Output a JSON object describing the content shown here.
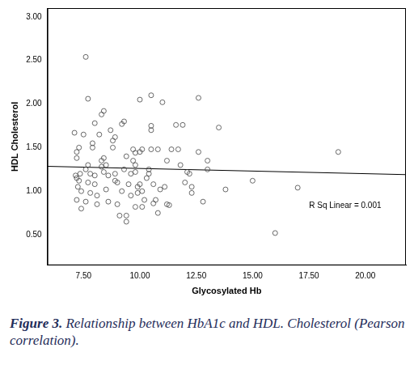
{
  "chart_data": {
    "type": "scatter",
    "x_label": "Glycosylated Hb",
    "y_label": "HDL Cholesterol",
    "annotation": "R Sq Linear = 0.001",
    "caption_label": "Figure 3.",
    "caption": "Relationship between HbA1c and HDL. Cholesterol (Pearson correlation).",
    "color": "#444444",
    "marker": "open_circle",
    "grid": false,
    "xlim": [
      5.9,
      21.8
    ],
    "ylim": [
      0.15,
      3.1
    ],
    "xticks": [
      {
        "value": 7.5,
        "label": "7.50"
      },
      {
        "value": 10,
        "label": "10.00"
      },
      {
        "value": 12.5,
        "label": "12.50"
      },
      {
        "value": 15,
        "label": "15.00"
      },
      {
        "value": 17.5,
        "label": "17.50"
      },
      {
        "value": 20,
        "label": "20.00"
      }
    ],
    "yticks": [
      {
        "value": 0.5,
        "label": "0.50"
      },
      {
        "value": 1,
        "label": "1.00"
      },
      {
        "value": 1.5,
        "label": "1.50"
      },
      {
        "value": 2,
        "label": "2.00"
      },
      {
        "value": 2.5,
        "label": "2.50"
      },
      {
        "value": 3,
        "label": "3.00"
      }
    ],
    "x": [
      7.1,
      7.2,
      7.3,
      7.2,
      7.15,
      7.2,
      7.3,
      7.25,
      7.2,
      7.35,
      7.4,
      7.4,
      7.5,
      7.6,
      7.7,
      7.6,
      7.7,
      7.7,
      7.8,
      7.8,
      7.6,
      7.9,
      7.9,
      8.0,
      8.0,
      8.0,
      8.1,
      8.1,
      8.2,
      8.3,
      8.4,
      8.3,
      8.3,
      8.4,
      8.4,
      8.5,
      8.6,
      8.5,
      8.6,
      8.7,
      8.8,
      8.8,
      8.9,
      8.9,
      8.9,
      9.0,
      9.0,
      9.1,
      9.2,
      9.3,
      9.3,
      9.2,
      9.4,
      9.4,
      9.4,
      9.5,
      9.6,
      9.6,
      9.7,
      9.7,
      9.8,
      9.8,
      9.8,
      9.8,
      9.9,
      9.9,
      10.0,
      10.0,
      10.0,
      10.1,
      10.1,
      10.1,
      10.2,
      10.3,
      10.4,
      10.4,
      10.5,
      10.5,
      10.5,
      10.5,
      10.6,
      10.6,
      10.7,
      10.8,
      10.8,
      10.9,
      11.0,
      11.1,
      11.2,
      11.2,
      11.3,
      11.4,
      11.6,
      11.7,
      11.8,
      11.9,
      12.0,
      12.1,
      12.2,
      12.3,
      12.3,
      12.6,
      12.6,
      12.8,
      13.0,
      13.0,
      13.5,
      13.8,
      15.0,
      16.0,
      17.0,
      18.8
    ],
    "values": [
      1.67,
      1.45,
      1.5,
      1.38,
      1.18,
      1.15,
      1.12,
      1.05,
      0.9,
      1.2,
      1.0,
      0.8,
      1.65,
      2.54,
      2.06,
      1.25,
      1.3,
      1.1,
      1.2,
      0.98,
      0.88,
      1.55,
      1.5,
      1.78,
      1.08,
      1.18,
      0.95,
      0.85,
      1.65,
      1.88,
      1.92,
      1.35,
      1.28,
      1.38,
      1.22,
      1.3,
      1.18,
      1.02,
      0.88,
      1.7,
      1.58,
      1.5,
      1.62,
      1.2,
      1.12,
      1.1,
      0.85,
      0.72,
      1.77,
      1.8,
      1.25,
      1.0,
      1.4,
      0.72,
      0.65,
      1.08,
      1.2,
      0.95,
      1.48,
      1.35,
      1.44,
      1.3,
      1.22,
      0.82,
      1.05,
      0.98,
      2.05,
      1.45,
      1.08,
      1.48,
      1.0,
      0.82,
      0.9,
      1.15,
      1.2,
      1.25,
      2.1,
      1.75,
      1.7,
      1.48,
      1.08,
      0.86,
      0.9,
      0.75,
      1.48,
      1.02,
      2.02,
      1.05,
      1.35,
      0.85,
      0.84,
      1.48,
      1.76,
      1.48,
      1.3,
      1.76,
      1.1,
      1.22,
      1.2,
      1.05,
      0.98,
      2.07,
      1.45,
      0.88,
      1.35,
      1.25,
      1.73,
      1.02,
      1.12,
      0.52,
      1.04,
      1.45
    ],
    "fit_line": {
      "x": [
        5.9,
        21.8
      ],
      "values": [
        1.285,
        1.19
      ],
      "color": "#000000"
    }
  }
}
